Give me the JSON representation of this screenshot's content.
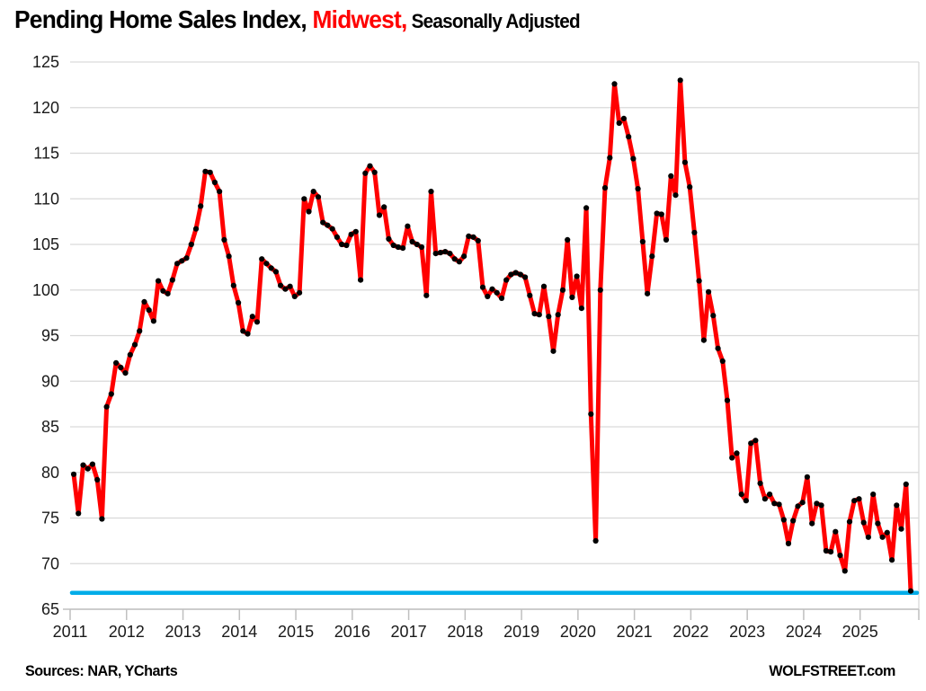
{
  "header": {
    "title_main": "Pending Home Sales Index, ",
    "title_region": "Midwest,",
    "title_suffix": " Seasonally Adjusted",
    "region_color": "#ff0000"
  },
  "footer": {
    "sources": "Sources: NAR, YCharts",
    "brand": "WOLFSTREET.com"
  },
  "chart_data": {
    "type": "line",
    "title": "Pending Home Sales Index, Midwest, Seasonally Adjusted",
    "x_unit": "month",
    "start": {
      "year": 2011,
      "month": 1
    },
    "end": {
      "year": 2025,
      "month": 11
    },
    "x_tick_years": [
      2011,
      2012,
      2013,
      2014,
      2015,
      2016,
      2017,
      2018,
      2019,
      2020,
      2021,
      2022,
      2023,
      2024,
      2025
    ],
    "ylim": [
      65,
      125
    ],
    "y_tick_step": 5,
    "grid": true,
    "legend": "none",
    "line_color": "#ff0000",
    "marker_color": "#000000",
    "grid_color": "#d9d9d9",
    "axis_color": "#bfbfbf",
    "tick_label_color": "#1a1a1a",
    "reference_line": {
      "value": 66.8,
      "color": "#00ace8"
    },
    "values": [
      79.8,
      75.5,
      80.8,
      80.4,
      80.9,
      79.2,
      74.9,
      87.2,
      88.6,
      92.0,
      91.5,
      90.9,
      92.9,
      94.0,
      95.5,
      98.7,
      97.8,
      96.6,
      101.0,
      99.9,
      99.6,
      101.1,
      102.9,
      103.2,
      103.5,
      105.0,
      106.7,
      109.2,
      113.0,
      112.9,
      111.8,
      110.8,
      105.5,
      103.7,
      100.5,
      98.6,
      95.5,
      95.2,
      97.1,
      96.5,
      103.4,
      102.9,
      102.4,
      102.0,
      100.5,
      100.1,
      100.4,
      99.3,
      99.7,
      110.0,
      108.6,
      110.8,
      110.2,
      107.4,
      107.1,
      106.7,
      105.8,
      105.0,
      104.9,
      106.1,
      106.4,
      101.1,
      112.8,
      113.6,
      112.9,
      108.2,
      109.1,
      105.6,
      104.9,
      104.7,
      104.6,
      107.0,
      105.3,
      105.0,
      104.7,
      99.4,
      110.8,
      104.0,
      104.1,
      104.2,
      104.0,
      103.4,
      103.1,
      103.7,
      105.9,
      105.8,
      105.4,
      100.3,
      99.3,
      100.1,
      99.7,
      99.1,
      101.1,
      101.7,
      101.9,
      101.7,
      101.4,
      99.4,
      97.4,
      97.3,
      100.4,
      97.1,
      93.3,
      97.3,
      100.0,
      105.5,
      99.2,
      101.5,
      98.0,
      109.0,
      86.4,
      72.5,
      100.0,
      111.2,
      114.5,
      122.6,
      118.3,
      118.8,
      116.8,
      114.4,
      111.1,
      105.3,
      99.6,
      103.7,
      108.4,
      108.3,
      105.5,
      112.5,
      110.4,
      123.0,
      114.0,
      111.3,
      106.3,
      101.0,
      94.5,
      99.8,
      97.2,
      93.6,
      92.2,
      87.9,
      81.6,
      82.1,
      77.6,
      76.9,
      83.2,
      83.5,
      78.8,
      77.1,
      77.6,
      76.6,
      76.5,
      74.8,
      72.2,
      74.7,
      76.3,
      76.7,
      79.5,
      74.4,
      76.6,
      76.4,
      71.4,
      71.3,
      73.5,
      70.9,
      69.2,
      74.6,
      76.9,
      77.1,
      74.5,
      72.9,
      77.6,
      74.4,
      72.9,
      73.4,
      70.4,
      76.4,
      73.8,
      78.7,
      67.0
    ]
  }
}
